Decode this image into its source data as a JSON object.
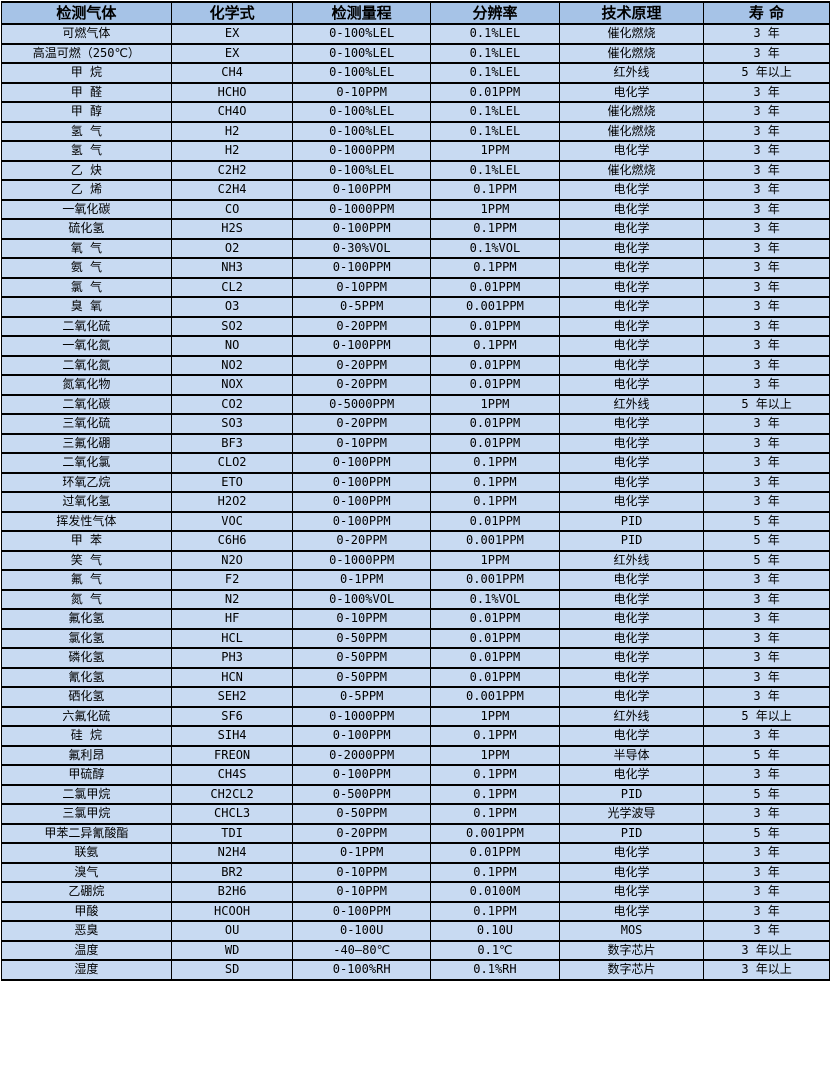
{
  "colors": {
    "header_bg": "#a6c3e7",
    "row_bg": "#c8daf2",
    "border": "#000000",
    "text": "#000000"
  },
  "table": {
    "columns": [
      "检测气体",
      "化学式",
      "检测量程",
      "分辨率",
      "技术原理",
      "寿 命"
    ],
    "rows": [
      [
        "可燃气体",
        "EX",
        "0-100%LEL",
        "0.1%LEL",
        "催化燃烧",
        "3 年"
      ],
      [
        "高温可燃（250℃）",
        "EX",
        "0-100%LEL",
        "0.1%LEL",
        "催化燃烧",
        "3 年"
      ],
      [
        "甲 烷",
        "CH4",
        "0-100%LEL",
        "0.1%LEL",
        "红外线",
        "5 年以上"
      ],
      [
        "甲 醛",
        "HCHO",
        "0-10PPM",
        "0.01PPM",
        "电化学",
        "3 年"
      ],
      [
        "甲 醇",
        "CH4O",
        "0-100%LEL",
        "0.1%LEL",
        "催化燃烧",
        "3 年"
      ],
      [
        "氢 气",
        "H2",
        "0-100%LEL",
        "0.1%LEL",
        "催化燃烧",
        "3 年"
      ],
      [
        "氢 气",
        "H2",
        "0-1000PPM",
        "1PPM",
        "电化学",
        "3 年"
      ],
      [
        "乙 炔",
        "C2H2",
        "0-100%LEL",
        "0.1%LEL",
        "催化燃烧",
        "3 年"
      ],
      [
        "乙 烯",
        "C2H4",
        "0-100PPM",
        "0.1PPM",
        "电化学",
        "3 年"
      ],
      [
        "一氧化碳",
        "CO",
        "0-1000PPM",
        "1PPM",
        "电化学",
        "3 年"
      ],
      [
        "硫化氢",
        "H2S",
        "0-100PPM",
        "0.1PPM",
        "电化学",
        "3 年"
      ],
      [
        "氧 气",
        "O2",
        "0-30%VOL",
        "0.1%VOL",
        "电化学",
        "3 年"
      ],
      [
        "氨 气",
        "NH3",
        "0-100PPM",
        "0.1PPM",
        "电化学",
        "3 年"
      ],
      [
        "氯 气",
        "CL2",
        "0-10PPM",
        "0.01PPM",
        "电化学",
        "3 年"
      ],
      [
        "臭 氧",
        "O3",
        "0-5PPM",
        "0.001PPM",
        "电化学",
        "3 年"
      ],
      [
        "二氧化硫",
        "SO2",
        "0-20PPM",
        "0.01PPM",
        "电化学",
        "3 年"
      ],
      [
        "一氧化氮",
        "NO",
        "0-100PPM",
        "0.1PPM",
        "电化学",
        "3 年"
      ],
      [
        "二氧化氮",
        "NO2",
        "0-20PPM",
        "0.01PPM",
        "电化学",
        "3 年"
      ],
      [
        "氮氧化物",
        "NOX",
        "0-20PPM",
        "0.01PPM",
        "电化学",
        "3 年"
      ],
      [
        "二氧化碳",
        "CO2",
        "0-5000PPM",
        "1PPM",
        "红外线",
        "5 年以上"
      ],
      [
        "三氧化硫",
        "SO3",
        "0-20PPM",
        "0.01PPM",
        "电化学",
        "3 年"
      ],
      [
        "三氟化硼",
        "BF3",
        "0-10PPM",
        "0.01PPM",
        "电化学",
        "3 年"
      ],
      [
        "二氧化氯",
        "CLO2",
        "0-100PPM",
        "0.1PPM",
        "电化学",
        "3 年"
      ],
      [
        "环氧乙烷",
        "ETO",
        "0-100PPM",
        "0.1PPM",
        "电化学",
        "3 年"
      ],
      [
        "过氧化氢",
        "H2O2",
        "0-100PPM",
        "0.1PPM",
        "电化学",
        "3 年"
      ],
      [
        "挥发性气体",
        "VOC",
        "0-100PPM",
        "0.01PPM",
        "PID",
        "5 年"
      ],
      [
        "甲 苯",
        "C6H6",
        "0-20PPM",
        "0.001PPM",
        "PID",
        "5 年"
      ],
      [
        "笑 气",
        "N2O",
        "0-1000PPM",
        "1PPM",
        "红外线",
        "5 年"
      ],
      [
        "氟 气",
        "F2",
        "0-1PPM",
        "0.001PPM",
        "电化学",
        "3 年"
      ],
      [
        "氮 气",
        "N2",
        "0-100%VOL",
        "0.1%VOL",
        "电化学",
        "3 年"
      ],
      [
        "氟化氢",
        "HF",
        "0-10PPM",
        "0.01PPM",
        "电化学",
        "3 年"
      ],
      [
        "氯化氢",
        "HCL",
        "0-50PPM",
        "0.01PPM",
        "电化学",
        "3 年"
      ],
      [
        "磷化氢",
        "PH3",
        "0-50PPM",
        "0.01PPM",
        "电化学",
        "3 年"
      ],
      [
        "氰化氢",
        "HCN",
        "0-50PPM",
        "0.01PPM",
        "电化学",
        "3 年"
      ],
      [
        "硒化氢",
        "SEH2",
        "0-5PPM",
        "0.001PPM",
        "电化学",
        "3 年"
      ],
      [
        "六氟化硫",
        "SF6",
        "0-1000PPM",
        "1PPM",
        "红外线",
        "5 年以上"
      ],
      [
        "硅 烷",
        "SIH4",
        "0-100PPM",
        "0.1PPM",
        "电化学",
        "3 年"
      ],
      [
        "氟利昂",
        "FREON",
        "0-2000PPM",
        "1PPM",
        "半导体",
        "5 年"
      ],
      [
        "甲硫醇",
        "CH4S",
        "0-100PPM",
        "0.1PPM",
        "电化学",
        "3 年"
      ],
      [
        "二氯甲烷",
        "CH2CL2",
        "0-500PPM",
        "0.1PPM",
        "PID",
        "5 年"
      ],
      [
        "三氯甲烷",
        "CHCL3",
        "0-50PPM",
        "0.1PPM",
        "光学波导",
        "3 年"
      ],
      [
        "甲苯二异氰酸酯",
        "TDI",
        "0-20PPM",
        "0.001PPM",
        "PID",
        "5 年"
      ],
      [
        "联氨",
        "N2H4",
        "0-1PPM",
        "0.01PPM",
        "电化学",
        "3 年"
      ],
      [
        "溴气",
        "BR2",
        "0-10PPM",
        "0.1PPM",
        "电化学",
        "3 年"
      ],
      [
        "乙硼烷",
        "B2H6",
        "0-10PPM",
        "0.0100M",
        "电化学",
        "3 年"
      ],
      [
        "甲酸",
        "HCOOH",
        "0-100PPM",
        "0.1PPM",
        "电化学",
        "3 年"
      ],
      [
        "恶臭",
        "OU",
        "0-100U",
        "0.10U",
        "MOS",
        "3 年"
      ],
      [
        "温度",
        "WD",
        "-40—80℃",
        "0.1℃",
        "数字芯片",
        "3 年以上"
      ],
      [
        "湿度",
        "SD",
        "0-100%RH",
        "0.1%RH",
        "数字芯片",
        "3 年以上"
      ]
    ]
  }
}
